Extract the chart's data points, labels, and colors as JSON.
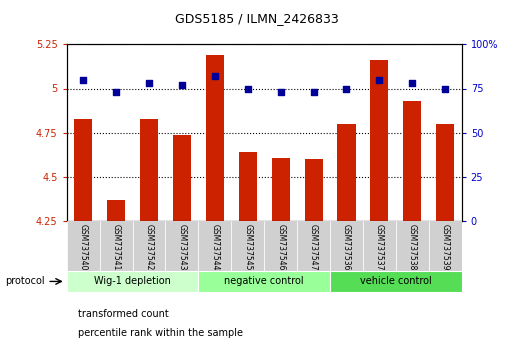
{
  "title": "GDS5185 / ILMN_2426833",
  "samples": [
    "GSM737540",
    "GSM737541",
    "GSM737542",
    "GSM737543",
    "GSM737544",
    "GSM737545",
    "GSM737546",
    "GSM737547",
    "GSM737536",
    "GSM737537",
    "GSM737538",
    "GSM737539"
  ],
  "transformed_count": [
    4.83,
    4.37,
    4.83,
    4.74,
    5.19,
    4.64,
    4.61,
    4.6,
    4.8,
    5.16,
    4.93,
    4.8
  ],
  "percentile_rank": [
    80,
    73,
    78,
    77,
    82,
    75,
    73,
    73,
    75,
    80,
    78,
    75
  ],
  "groups": [
    {
      "label": "Wig-1 depletion",
      "start": 0,
      "end": 3,
      "color": "#ccffcc"
    },
    {
      "label": "negative control",
      "start": 4,
      "end": 7,
      "color": "#99ff99"
    },
    {
      "label": "vehicle control",
      "start": 8,
      "end": 11,
      "color": "#55dd55"
    }
  ],
  "ylim_left": [
    4.25,
    5.25
  ],
  "ylim_right": [
    0,
    100
  ],
  "yticks_left": [
    4.25,
    4.5,
    4.75,
    5.0,
    5.25
  ],
  "yticks_right": [
    0,
    25,
    50,
    75,
    100
  ],
  "ytick_labels_left": [
    "4.25",
    "4.5",
    "4.75",
    "5",
    "5.25"
  ],
  "ytick_labels_right": [
    "0",
    "25",
    "50",
    "75",
    "100%"
  ],
  "bar_color": "#cc2200",
  "dot_color": "#000099",
  "bar_width": 0.55,
  "background_color": "#ffffff",
  "plot_bg_color": "#ffffff",
  "grid_color": "#000000",
  "left_label_color": "#cc2200",
  "right_label_color": "#0000cc",
  "legend_red_label": "transformed count",
  "legend_blue_label": "percentile rank within the sample",
  "protocol_label": "protocol"
}
